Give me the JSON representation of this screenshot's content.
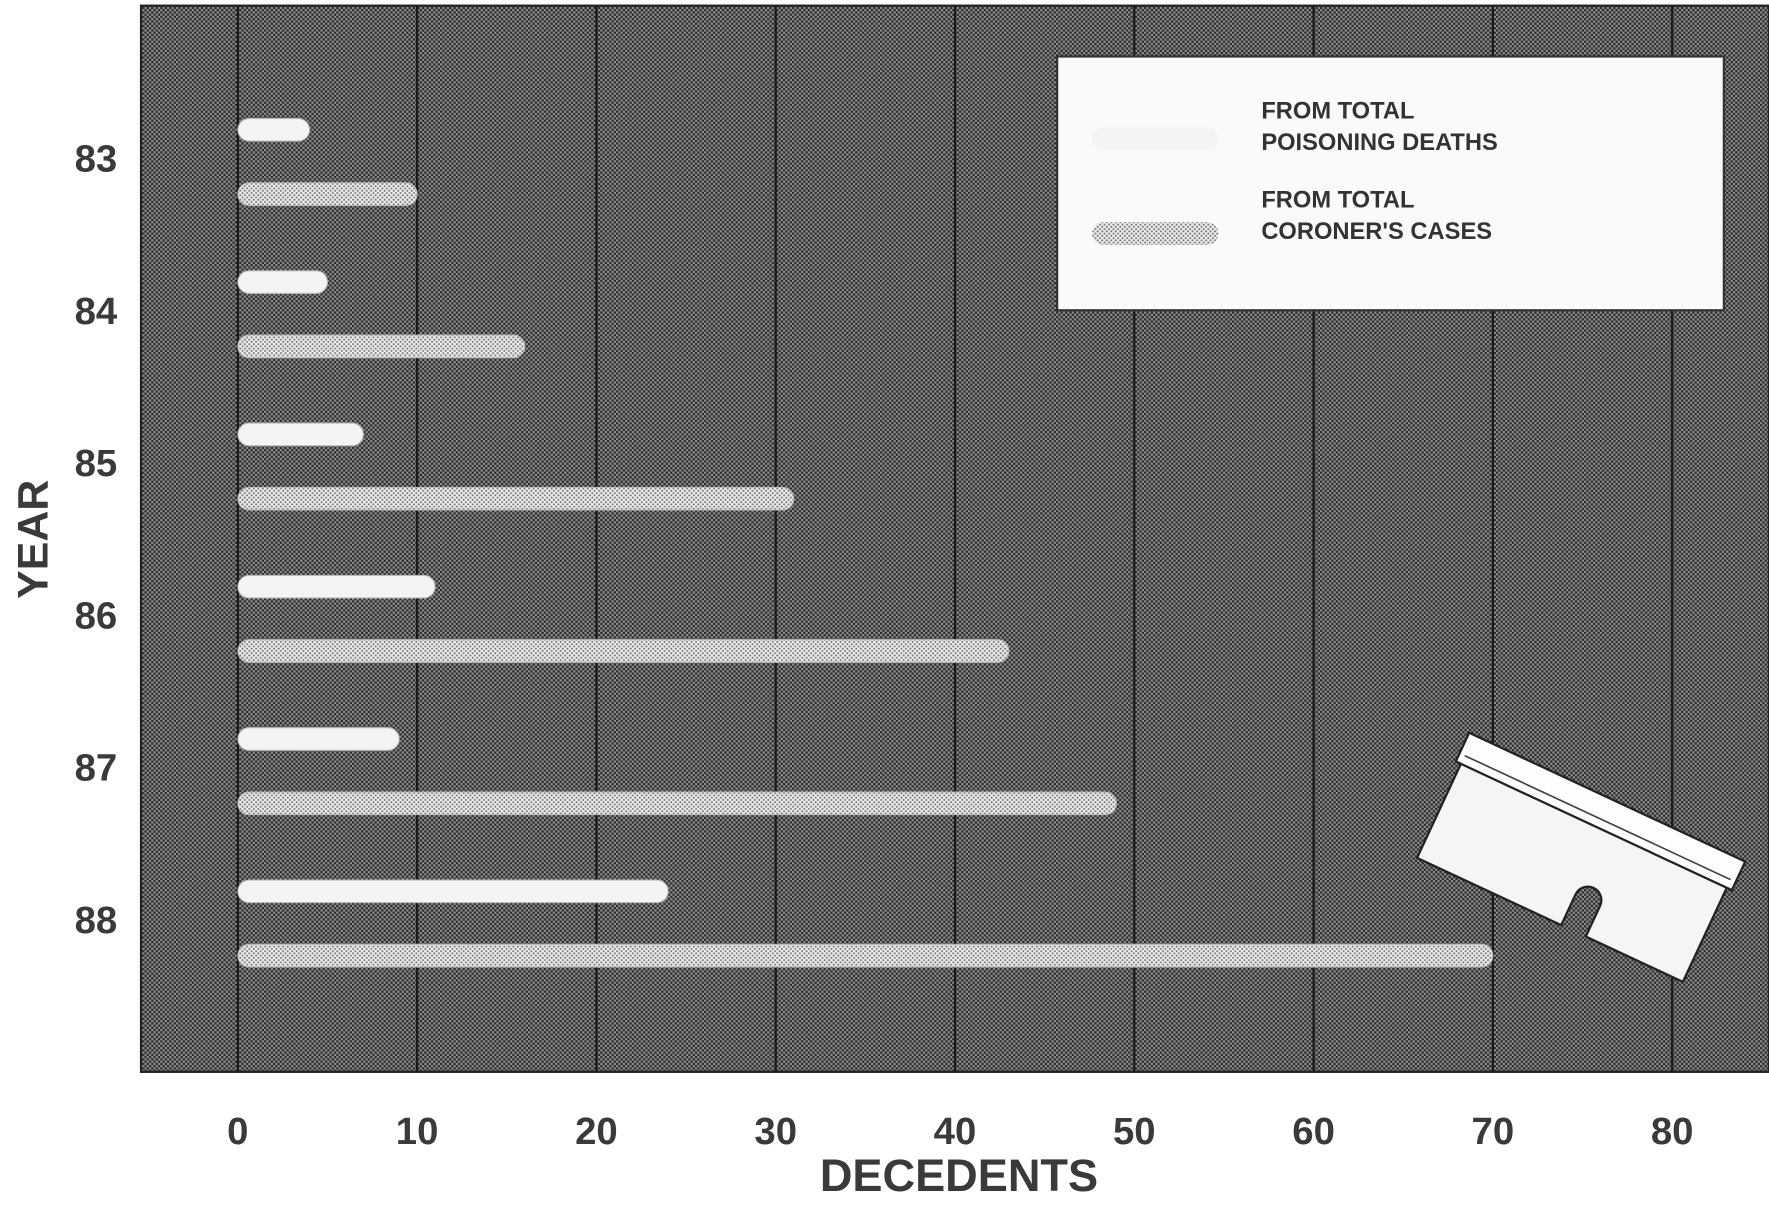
{
  "chart_data": {
    "type": "bar",
    "orientation": "horizontal",
    "x_label": "DECEDENTS",
    "y_label": "YEAR",
    "categories": [
      "83",
      "84",
      "85",
      "86",
      "87",
      "88"
    ],
    "series": [
      {
        "name": "FROM TOTAL POISONING DEATHS",
        "color": "#f4f4f4",
        "values": [
          4,
          5,
          7,
          11,
          9,
          24
        ]
      },
      {
        "name": "FROM TOTAL CORONER'S CASES",
        "color": "#d4d4d4",
        "values": [
          10,
          16,
          31,
          43,
          49,
          70
        ]
      }
    ],
    "xlim": [
      -5.4,
      85.4
    ],
    "xticks": [
      0,
      10,
      20,
      30,
      40,
      50,
      60,
      70,
      80
    ],
    "grid": true
  }
}
